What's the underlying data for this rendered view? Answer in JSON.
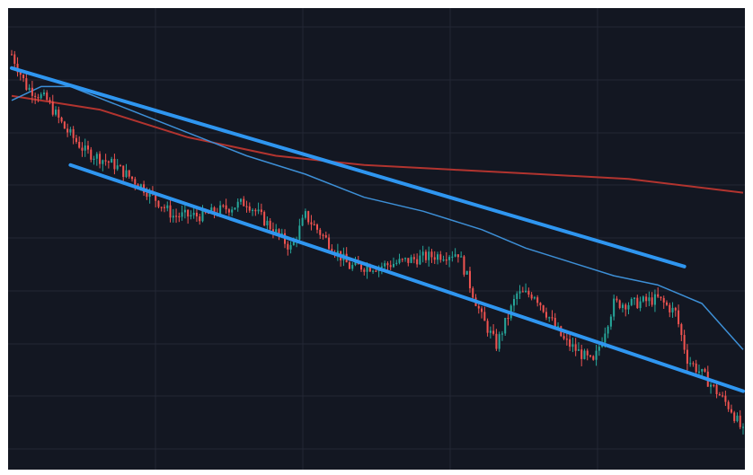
{
  "colors": {
    "page": "#ffffff",
    "background": "#131722",
    "grid": "#232734",
    "up": "#26a69a",
    "down": "#ef5350",
    "channel": "#2f96f0",
    "ma_long": "#b2342f",
    "ma_short": "#3d8fd6"
  },
  "chart_data": {
    "type": "candlestick",
    "title": "",
    "xlabel": "",
    "ylabel": "",
    "grid": true,
    "x_count": 250,
    "y_range": [
      0,
      100
    ],
    "candles_note": "",
    "path_anchors": [
      [
        0,
        90
      ],
      [
        5,
        83
      ],
      [
        12,
        80
      ],
      [
        18,
        74
      ],
      [
        25,
        69
      ],
      [
        35,
        66
      ],
      [
        45,
        61
      ],
      [
        55,
        55
      ],
      [
        65,
        55
      ],
      [
        80,
        58
      ],
      [
        95,
        48
      ],
      [
        100,
        55
      ],
      [
        115,
        44
      ],
      [
        125,
        44
      ],
      [
        140,
        46
      ],
      [
        152,
        47
      ],
      [
        160,
        33
      ],
      [
        165,
        27
      ],
      [
        172,
        38
      ],
      [
        178,
        38
      ],
      [
        188,
        28
      ],
      [
        198,
        23
      ],
      [
        205,
        36
      ],
      [
        212,
        36
      ],
      [
        220,
        37
      ],
      [
        226,
        34
      ],
      [
        230,
        24
      ],
      [
        236,
        20
      ],
      [
        245,
        13
      ],
      [
        249,
        8
      ]
    ],
    "channel": [
      {
        "name": "",
        "x": [
          0,
          229
        ],
        "y": [
          87,
          44
        ]
      },
      {
        "name": "",
        "x": [
          20,
          249
        ],
        "y": [
          66,
          17
        ]
      }
    ],
    "moving_averages": [
      {
        "name": "",
        "color": "ma_long",
        "x": [
          0,
          30,
          60,
          90,
          120,
          150,
          180,
          210,
          249
        ],
        "y": [
          81,
          78,
          72,
          68,
          66,
          65,
          64,
          63,
          60
        ]
      },
      {
        "name": "",
        "color": "ma_short",
        "x": [
          0,
          10,
          20,
          40,
          60,
          80,
          100,
          120,
          140,
          160,
          175,
          190,
          205,
          220,
          235,
          249
        ],
        "y": [
          80,
          83,
          83,
          78,
          73,
          68,
          64,
          59,
          56,
          52,
          48,
          45,
          42,
          40,
          36,
          26
        ]
      }
    ]
  }
}
